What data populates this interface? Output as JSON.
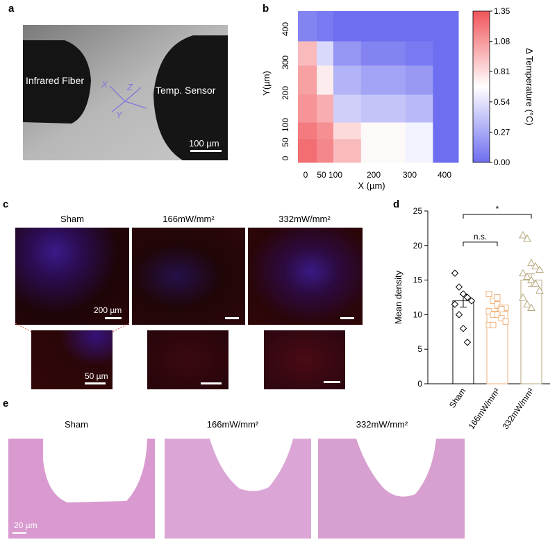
{
  "panels": {
    "a": {
      "label": "a",
      "fiber_label": "Infrared Fiber",
      "sensor_label": "Temp. Sensor",
      "axis_x": "X",
      "axis_y": "Y",
      "axis_z": "Z",
      "scale": "100 µm"
    },
    "b": {
      "label": "b"
    },
    "c": {
      "label": "c",
      "groups": [
        "Sham",
        "166mW/mm²",
        "332mW/mm²"
      ],
      "scale_top": "200 µm",
      "scale_bottom": "50 µm"
    },
    "d": {
      "label": "d"
    },
    "e": {
      "label": "e",
      "groups": [
        "Sham",
        "166mW/mm²",
        "332mW/mm²"
      ],
      "scale": "20 µm"
    }
  },
  "chart_data": [
    {
      "type": "heatmap",
      "panel": "b",
      "xlabel": "X (µm)",
      "ylabel": "Y(µm)",
      "x_ticks": [
        "0",
        "50",
        "100",
        "200",
        "300",
        "400"
      ],
      "y_ticks": [
        "0",
        "50",
        "100",
        "200",
        "300",
        "400"
      ],
      "colorbar_label": "Δ Temperature (°C)",
      "colorbar_ticks": [
        "1.35",
        "1.08",
        "0.81",
        "0.54",
        "0.27",
        "0.00"
      ],
      "value_range": [
        0,
        1.35
      ],
      "columns": [
        "0",
        "50",
        "100",
        "200",
        "300",
        "400"
      ],
      "rows_bottom_to_top": [
        "0",
        "50",
        "100",
        "200",
        "300",
        "400"
      ],
      "values": [
        [
          1.25,
          1.15,
          0.95,
          0.7,
          0.62,
          0.0
        ],
        [
          1.2,
          1.12,
          0.82,
          0.7,
          0.62,
          0.0
        ],
        [
          1.1,
          1.0,
          0.45,
          0.4,
          0.35,
          0.0
        ],
        [
          1.05,
          0.75,
          0.32,
          0.25,
          0.2,
          0.0
        ],
        [
          0.95,
          0.5,
          0.18,
          0.1,
          0.05,
          0.0
        ],
        [
          0.1,
          0.05,
          0.0,
          0.0,
          0.0,
          0.0
        ]
      ]
    },
    {
      "type": "bar",
      "panel": "d",
      "ylabel": "Mean density",
      "categories": [
        "Sham",
        "166mW/mm²",
        "332mW/mm²"
      ],
      "values": [
        12.0,
        10.5,
        15.0
      ],
      "errors": [
        0.9,
        0.4,
        0.9
      ],
      "ylim": [
        0,
        25
      ],
      "yticks": [
        0,
        5,
        10,
        15,
        20,
        25
      ],
      "colors": [
        "#000000",
        "#f0b27a",
        "#b5a57a"
      ],
      "markers": [
        "diamond",
        "square",
        "triangle"
      ],
      "points": [
        [
          16.0,
          14.0,
          13.0,
          12.5,
          12.0,
          11.5,
          10.0,
          8.0,
          6.0
        ],
        [
          13.0,
          12.0,
          11.5,
          11.0,
          11.0,
          10.5,
          10.0,
          10.0,
          9.5,
          9.0,
          8.5,
          8.5,
          12.5,
          10.8
        ],
        [
          21.5,
          21.0,
          17.5,
          17.0,
          16.5,
          16.0,
          15.5,
          15.0,
          14.5,
          13.5,
          12.5,
          11.5,
          11.0
        ]
      ],
      "comparisons": [
        {
          "from": "Sham",
          "to": "166mW/mm²",
          "text": "n.s."
        },
        {
          "from": "Sham",
          "to": "332mW/mm²",
          "text": "*"
        }
      ]
    }
  ]
}
